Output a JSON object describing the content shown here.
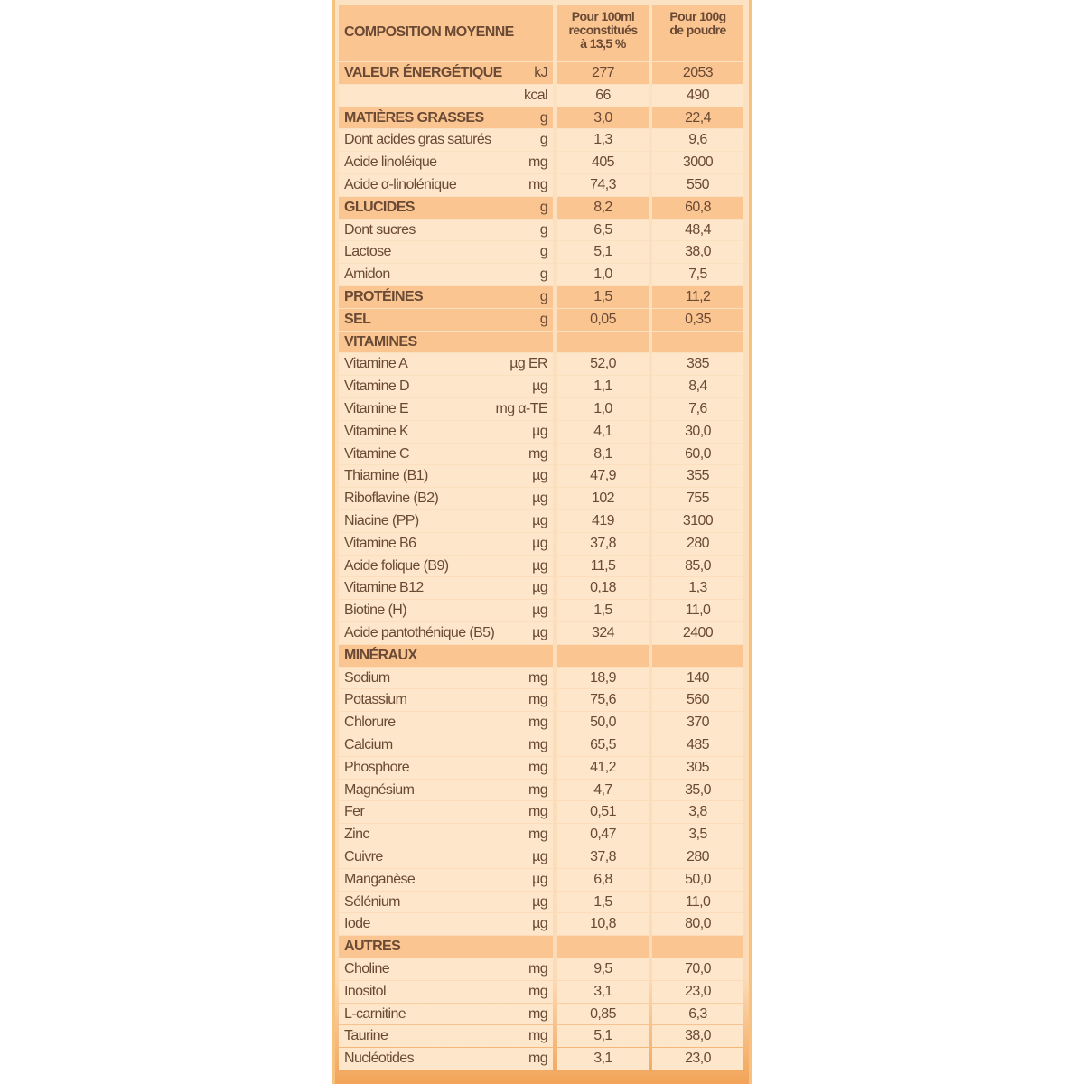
{
  "table": {
    "header": {
      "label": "COMPOSITION MOYENNE",
      "per_100ml": [
        "Pour 100ml",
        "reconstitués",
        "à 13,5 %"
      ],
      "per_100g": [
        "Pour 100g",
        "de poudre"
      ]
    },
    "sections": [
      {
        "name": "VALEUR ÉNERGÉTIQUE",
        "unit": "kJ",
        "per_100ml": "277",
        "per_100g": "2053",
        "rows": [
          {
            "unit": "kcal",
            "per_100ml": "66",
            "per_100g": "490"
          }
        ]
      },
      {
        "name": "MATIÈRES GRASSES",
        "unit": "g",
        "per_100ml": "3,0",
        "per_100g": "22,4",
        "rows": [
          {
            "label": "Dont acides gras saturés",
            "unit": "g",
            "per_100ml": "1,3",
            "per_100g": "9,6"
          },
          {
            "label": "Acide linoléique",
            "unit": "mg",
            "per_100ml": "405",
            "per_100g": "3000"
          },
          {
            "label": "Acide α-linolénique",
            "unit": "mg",
            "per_100ml": "74,3",
            "per_100g": "550"
          }
        ]
      },
      {
        "name": "GLUCIDES",
        "unit": "g",
        "per_100ml": "8,2",
        "per_100g": "60,8",
        "rows": [
          {
            "label": "Dont sucres",
            "unit": "g",
            "per_100ml": "6,5",
            "per_100g": "48,4"
          },
          {
            "label": "Lactose",
            "unit": "g",
            "per_100ml": "5,1",
            "per_100g": "38,0"
          },
          {
            "label": "Amidon",
            "unit": "g",
            "per_100ml": "1,0",
            "per_100g": "7,5"
          }
        ]
      },
      {
        "name": "PROTÉINES",
        "unit": "g",
        "per_100ml": "1,5",
        "per_100g": "11,2",
        "rows": []
      },
      {
        "name": "SEL",
        "unit": "g",
        "per_100ml": "0,05",
        "per_100g": "0,35",
        "rows": []
      },
      {
        "name": "VITAMINES",
        "rows": [
          {
            "label": "Vitamine A",
            "unit": "µg ER",
            "per_100ml": "52,0",
            "per_100g": "385"
          },
          {
            "label": "Vitamine D",
            "unit": "µg",
            "per_100ml": "1,1",
            "per_100g": "8,4"
          },
          {
            "label": "Vitamine E",
            "unit": "mg α-TE",
            "per_100ml": "1,0",
            "per_100g": "7,6"
          },
          {
            "label": "Vitamine K",
            "unit": "µg",
            "per_100ml": "4,1",
            "per_100g": "30,0"
          },
          {
            "label": "Vitamine C",
            "unit": "mg",
            "per_100ml": "8,1",
            "per_100g": "60,0"
          },
          {
            "label": "Thiamine (B1)",
            "unit": "µg",
            "per_100ml": "47,9",
            "per_100g": "355"
          },
          {
            "label": "Riboflavine (B2)",
            "unit": "µg",
            "per_100ml": "102",
            "per_100g": "755"
          },
          {
            "label": "Niacine (PP)",
            "unit": "µg",
            "per_100ml": "419",
            "per_100g": "3100"
          },
          {
            "label": "Vitamine B6",
            "unit": "µg",
            "per_100ml": "37,8",
            "per_100g": "280"
          },
          {
            "label": "Acide folique (B9)",
            "unit": "µg",
            "per_100ml": "11,5",
            "per_100g": "85,0"
          },
          {
            "label": "Vitamine B12",
            "unit": "µg",
            "per_100ml": "0,18",
            "per_100g": "1,3"
          },
          {
            "label": "Biotine (H)",
            "unit": "µg",
            "per_100ml": "1,5",
            "per_100g": "11,0"
          },
          {
            "label": "Acide pantothénique (B5)",
            "unit": "µg",
            "per_100ml": "324",
            "per_100g": "2400"
          }
        ]
      },
      {
        "name": "MINÉRAUX",
        "rows": [
          {
            "label": "Sodium",
            "unit": "mg",
            "per_100ml": "18,9",
            "per_100g": "140"
          },
          {
            "label": "Potassium",
            "unit": "mg",
            "per_100ml": "75,6",
            "per_100g": "560"
          },
          {
            "label": "Chlorure",
            "unit": "mg",
            "per_100ml": "50,0",
            "per_100g": "370"
          },
          {
            "label": "Calcium",
            "unit": "mg",
            "per_100ml": "65,5",
            "per_100g": "485"
          },
          {
            "label": "Phosphore",
            "unit": "mg",
            "per_100ml": "41,2",
            "per_100g": "305"
          },
          {
            "label": "Magnésium",
            "unit": "mg",
            "per_100ml": "4,7",
            "per_100g": "35,0"
          },
          {
            "label": "Fer",
            "unit": "mg",
            "per_100ml": "0,51",
            "per_100g": "3,8"
          },
          {
            "label": "Zinc",
            "unit": "mg",
            "per_100ml": "0,47",
            "per_100g": "3,5"
          },
          {
            "label": "Cuivre",
            "unit": "µg",
            "per_100ml": "37,8",
            "per_100g": "280"
          },
          {
            "label": "Manganèse",
            "unit": "µg",
            "per_100ml": "6,8",
            "per_100g": "50,0"
          },
          {
            "label": "Sélénium",
            "unit": "µg",
            "per_100ml": "1,5",
            "per_100g": "11,0"
          },
          {
            "label": "Iode",
            "unit": "µg",
            "per_100ml": "10,8",
            "per_100g": "80,0"
          }
        ]
      },
      {
        "name": "AUTRES",
        "rows": [
          {
            "label": "Choline",
            "unit": "mg",
            "per_100ml": "9,5",
            "per_100g": "70,0"
          },
          {
            "label": "Inositol",
            "unit": "mg",
            "per_100ml": "3,1",
            "per_100g": "23,0"
          },
          {
            "label": "L-carnitine",
            "unit": "mg",
            "per_100ml": "0,85",
            "per_100g": "6,3"
          },
          {
            "label": "Taurine",
            "unit": "mg",
            "per_100ml": "5,1",
            "per_100g": "38,0"
          },
          {
            "label": "Nucléotides",
            "unit": "mg",
            "per_100ml": "3,1",
            "per_100g": "23,0"
          }
        ]
      }
    ]
  }
}
